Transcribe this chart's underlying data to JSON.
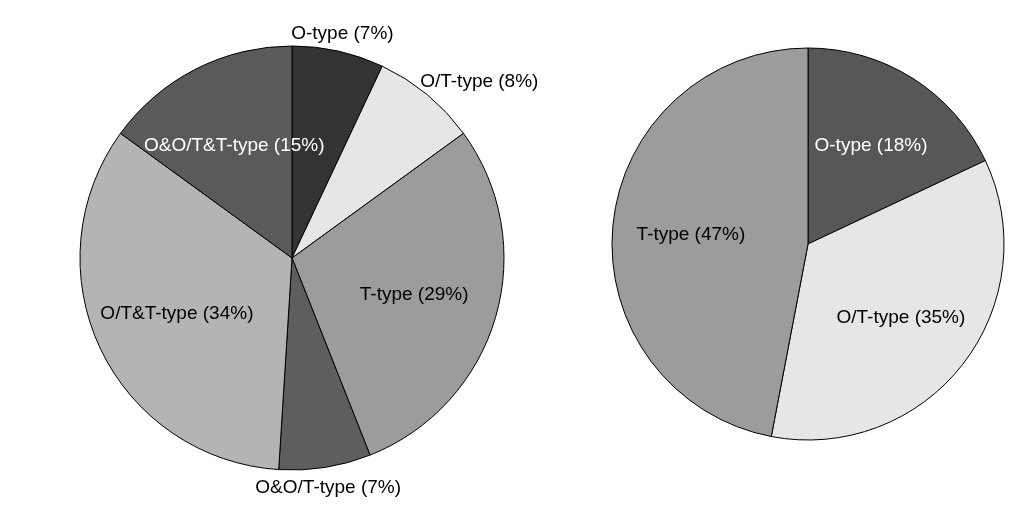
{
  "chart_data": [
    {
      "type": "pie",
      "categories": [
        "O-type",
        "O/T-type",
        "T-type",
        "O&O/T-type",
        "O/T&T-type",
        "O&O/T&T-type"
      ],
      "values": [
        7,
        8,
        29,
        7,
        34,
        15
      ],
      "value_labels": [
        "(7%)",
        "(8%)",
        "(29%)",
        "(7%)",
        "(34%)",
        "(15%)"
      ],
      "colors": [
        "#333333",
        "#e6e6e6",
        "#9c9c9c",
        "#5e5e5e",
        "#b4b4b4",
        "#5a5a5a"
      ]
    },
    {
      "type": "pie",
      "categories": [
        "O-type",
        "O/T-type",
        "T-type"
      ],
      "values": [
        18,
        35,
        47
      ],
      "value_labels": [
        "(18%)",
        "(35%)",
        "(47%)"
      ],
      "colors": [
        "#575757",
        "#e6e6e6",
        "#9c9c9c"
      ]
    }
  ]
}
